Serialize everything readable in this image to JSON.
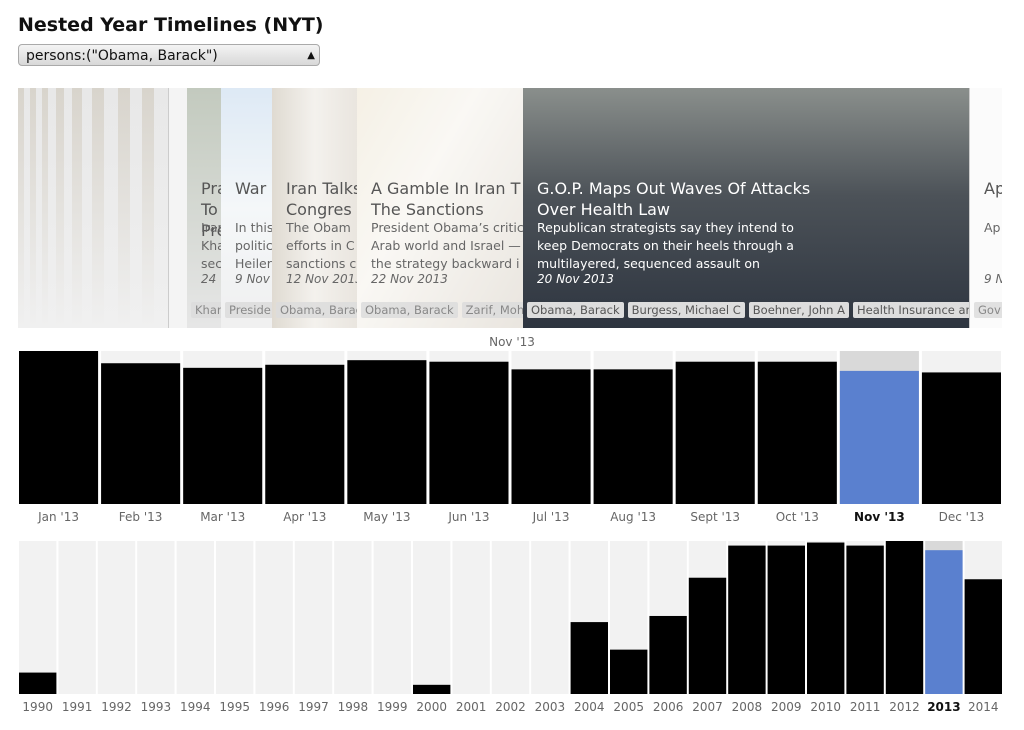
{
  "header": {
    "title": "Nested Year Timelines (NYT)"
  },
  "selector": {
    "value": "persons:(\"Obama, Barack\")"
  },
  "cards": [
    {
      "headline": [
        "Pra",
        "To",
        "Pre"
      ],
      "summary": [
        "Irar",
        "Kha",
        "sec"
      ],
      "date": "24",
      "tags": [
        "Khar"
      ]
    },
    {
      "headline": [
        "War"
      ],
      "summary": [
        "In this",
        "politic",
        "Heiler"
      ],
      "date": "9 Nov",
      "tags": [
        "Preside"
      ]
    },
    {
      "headline": [
        "Iran Talks",
        "Congres"
      ],
      "summary": [
        "The Obam",
        "efforts in C",
        "sanctions c"
      ],
      "date": "12 Nov 2013",
      "tags": [
        "Obama, Barac"
      ]
    },
    {
      "headline": [
        "A Gamble In Iran T",
        "The Sanctions"
      ],
      "summary": [
        "President Obama’s critic",
        "Arab world and Israel —",
        "the strategy backward i"
      ],
      "date": "22 Nov 2013",
      "tags": [
        "Obama, Barack",
        "Zarif, Moha"
      ]
    },
    {
      "headline": [
        "G.O.P. Maps Out Waves Of Attacks",
        "Over Health Law"
      ],
      "summary": [
        "Republican strategists say they intend to",
        "keep Democrats on their heels through a",
        "multilayered, sequenced assault on"
      ],
      "date": "20 Nov 2013",
      "tags": [
        "Obama, Barack",
        "Burgess, Michael C",
        "Boehner, John A",
        "Health Insurance and"
      ]
    },
    {
      "headline": [
        "Ap"
      ],
      "summary": [
        "Ap"
      ],
      "date": "9 N",
      "tags": [
        "Gov"
      ]
    }
  ],
  "month_caption": "Nov '13",
  "chart_data": [
    {
      "type": "bar",
      "categories": [
        "Jan '13",
        "Feb '13",
        "Mar '13",
        "Apr '13",
        "May '13",
        "Jun '13",
        "Jul '13",
        "Aug '13",
        "Sept '13",
        "Oct '13",
        "Nov '13",
        "Dec '13"
      ],
      "values": [
        100,
        92,
        89,
        91,
        94,
        93,
        88,
        88,
        93,
        93,
        87,
        86
      ],
      "ylim": [
        0,
        100
      ],
      "color": "#000000",
      "highlight_color": "#5a80cf",
      "highlight_index": 10
    },
    {
      "type": "bar",
      "categories": [
        "1990",
        "1991",
        "1992",
        "1993",
        "1994",
        "1995",
        "1996",
        "1997",
        "1998",
        "1999",
        "2000",
        "2001",
        "2002",
        "2003",
        "2004",
        "2005",
        "2006",
        "2007",
        "2008",
        "2009",
        "2010",
        "2011",
        "2012",
        "2013",
        "2014"
      ],
      "values": [
        14,
        0,
        0,
        0,
        0,
        0,
        0,
        0,
        0,
        0,
        6,
        0,
        0,
        0,
        47,
        29,
        51,
        76,
        97,
        97,
        99,
        97,
        100,
        94,
        75
      ],
      "ylim": [
        0,
        100
      ],
      "color": "#000000",
      "highlight_color": "#5a80cf",
      "highlight_index": 23
    }
  ]
}
